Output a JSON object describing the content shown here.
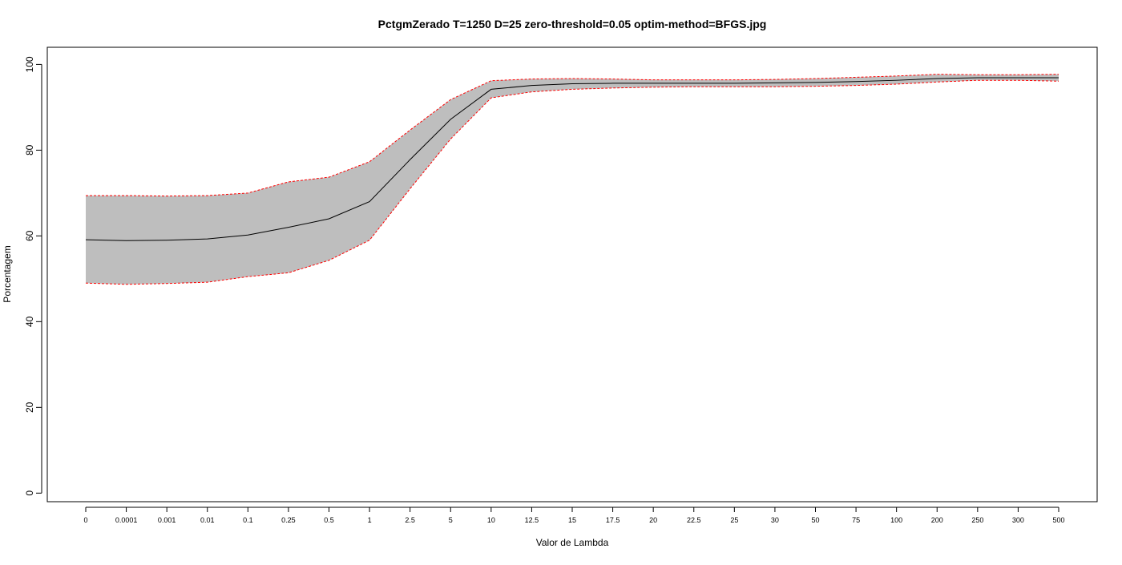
{
  "chart_data": {
    "type": "area",
    "title": "PctgmZerado T=1250 D=25 zero-threshold=0.05 optim-method=BFGS.jpg",
    "xlabel": "Valor de Lambda",
    "ylabel": "Porcentagem",
    "categories": [
      "0",
      "0.0001",
      "0.001",
      "0.01",
      "0.1",
      "0.25",
      "0.5",
      "1",
      "2.5",
      "5",
      "10",
      "12.5",
      "15",
      "17.5",
      "20",
      "22.5",
      "25",
      "30",
      "50",
      "75",
      "100",
      "200",
      "250",
      "300",
      "500"
    ],
    "ylim": [
      -2,
      104
    ],
    "yticks": [
      0,
      20,
      40,
      60,
      80,
      100
    ],
    "grid": false,
    "legend": "none",
    "series": [
      {
        "role": "mean",
        "color": "#000000",
        "values": [
          59.1,
          58.9,
          59.0,
          59.3,
          60.2,
          62.0,
          64.0,
          68.0,
          77.8,
          87.2,
          94.2,
          95.1,
          95.5,
          95.6,
          95.6,
          95.6,
          95.6,
          95.7,
          95.8,
          96.0,
          96.3,
          96.7,
          96.9,
          96.9,
          96.9
        ]
      },
      {
        "role": "upper",
        "color": "#ff0000",
        "values": [
          69.4,
          69.4,
          69.3,
          69.4,
          70.0,
          72.6,
          73.7,
          77.3,
          84.7,
          91.8,
          96.2,
          96.6,
          96.7,
          96.6,
          96.4,
          96.4,
          96.4,
          96.5,
          96.7,
          97.0,
          97.3,
          97.7,
          97.6,
          97.6,
          97.7
        ]
      },
      {
        "role": "lower",
        "color": "#ff0000",
        "values": [
          49.0,
          48.7,
          48.9,
          49.2,
          50.5,
          51.4,
          54.3,
          59.0,
          71.0,
          82.6,
          92.2,
          93.6,
          94.2,
          94.5,
          94.7,
          94.8,
          94.8,
          94.8,
          94.9,
          95.1,
          95.4,
          95.9,
          96.3,
          96.3,
          96.1
        ]
      }
    ],
    "band_color": "#bebebe"
  }
}
